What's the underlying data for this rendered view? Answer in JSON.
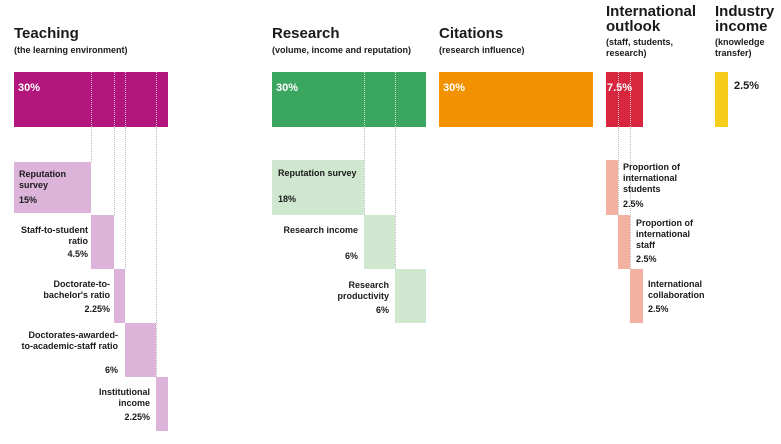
{
  "teaching": {
    "title": "Teaching",
    "subtitle": "(the learning environment)",
    "weight": "30%",
    "color": "#b2157c",
    "sub_color": "#dcb3d9",
    "items": [
      {
        "name": "Reputation survey",
        "value": "15%",
        "weight": 15
      },
      {
        "name": "Staff-to-student ratio",
        "value": "4.5%",
        "weight": 4.5
      },
      {
        "name": "Doctorate-to-bachelor's ratio",
        "value": "2.25%",
        "weight": 2.25
      },
      {
        "name": "Doctorates-awarded-to-academic-staff ratio",
        "value": "6%",
        "weight": 6
      },
      {
        "name": "Institutional income",
        "value": "2.25%",
        "weight": 2.25
      }
    ]
  },
  "research": {
    "title": "Research",
    "subtitle": "(volume, income and reputation)",
    "weight": "30%",
    "color": "#3aa660",
    "sub_color": "#cfe6cf",
    "items": [
      {
        "name": "Reputation survey",
        "value": "18%",
        "weight": 18
      },
      {
        "name": "Research income",
        "value": "6%",
        "weight": 6
      },
      {
        "name": "Research productivity",
        "value": "6%",
        "weight": 6
      }
    ]
  },
  "citations": {
    "title": "Citations",
    "subtitle": "(research influence)",
    "weight": "30%",
    "color": "#f39200"
  },
  "international": {
    "title": "International outlook",
    "subtitle": "(staff, students, research)",
    "weight": "7.5%",
    "color": "#d7263d",
    "sub_color": "#f2b1a1",
    "items": [
      {
        "name": "Proportion of international students",
        "value": "2.5%",
        "weight": 2.5
      },
      {
        "name": "Proportion of international staff",
        "value": "2.5%",
        "weight": 2.5
      },
      {
        "name": "International collaboration",
        "value": "2.5%",
        "weight": 2.5
      }
    ]
  },
  "industry": {
    "title": "Industry income",
    "subtitle": "(knowledge transfer)",
    "weight": "2.5%",
    "color": "#f7cd1b"
  }
}
